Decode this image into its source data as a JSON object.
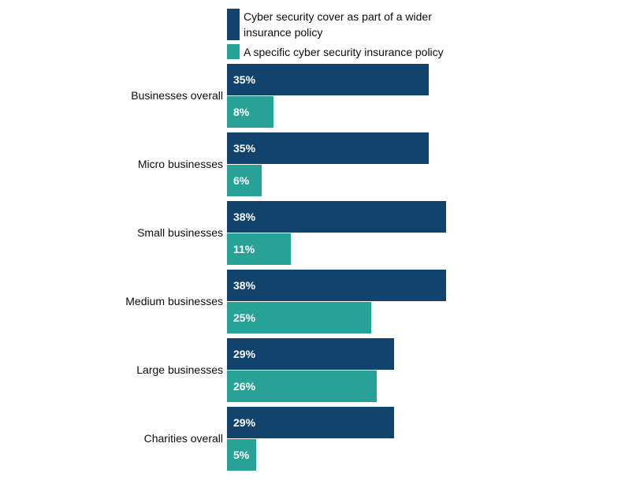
{
  "chart_data": {
    "type": "bar",
    "orientation": "horizontal",
    "categories": [
      "Businesses overall",
      "Micro businesses",
      "Small businesses",
      "Medium businesses",
      "Large businesses",
      "Charities overall"
    ],
    "series": [
      {
        "name": "Cyber security cover as part of a wider insurance policy",
        "color": "#12436D",
        "values": [
          35,
          35,
          38,
          38,
          29,
          29
        ],
        "labels": [
          "35%",
          "35%",
          "38%",
          "38%",
          "29%",
          "29%"
        ]
      },
      {
        "name": "A specific cyber security insurance policy",
        "color": "#28A197",
        "values": [
          8,
          6,
          11,
          25,
          26,
          5
        ],
        "labels": [
          "8%",
          "6%",
          "11%",
          "25%",
          "26%",
          "5%"
        ]
      }
    ],
    "legend_position": "top",
    "grid": false,
    "unit": "%"
  }
}
